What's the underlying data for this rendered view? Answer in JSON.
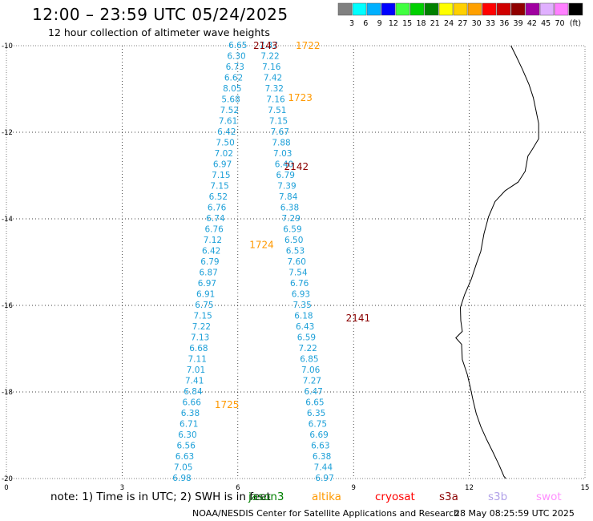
{
  "header": {
    "title": "12:00 – 23:59 UTC 05/24/2025",
    "subtitle": "12 hour collection of altimeter wave heights"
  },
  "legend": {
    "colors": [
      "#808080",
      "#00ffff",
      "#00b0ff",
      "#0000ff",
      "#40ff40",
      "#00d000",
      "#008000",
      "#ffff00",
      "#ffd000",
      "#ffa000",
      "#ff0000",
      "#d00000",
      "#900000",
      "#a000a0",
      "#e0b0ff",
      "#ff80ff",
      "#000000"
    ],
    "labels": [
      "3",
      "6",
      "9",
      "12",
      "15",
      "18",
      "21",
      "24",
      "27",
      "30",
      "33",
      "36",
      "39",
      "42",
      "45",
      "70",
      "(ft)"
    ]
  },
  "map": {
    "lon_range": [
      0,
      15
    ],
    "lat_range": [
      -20,
      -10
    ],
    "x_ticks": [
      "0",
      "3",
      "6",
      "9",
      "12",
      "15"
    ],
    "y_ticks": [
      "-10",
      "-12",
      "-14",
      "-16",
      "-18",
      "-20"
    ],
    "grid": "dotted",
    "coastline_color": "#000000",
    "label_color": "#1ea0d8"
  },
  "passes": [
    {
      "label": "2143",
      "color": "#8b0000"
    },
    {
      "label": "1722",
      "color": "#ff9900"
    },
    {
      "label": "1723",
      "color": "#ff9900"
    },
    {
      "label": "2142",
      "color": "#8b0000"
    },
    {
      "label": "1724",
      "color": "#ff9900"
    },
    {
      "label": "2141",
      "color": "#8b0000"
    },
    {
      "label": "1725",
      "color": "#ff9900"
    }
  ],
  "track_a": [
    "6.65",
    "6.30",
    "6.73",
    "6.62",
    "8.05",
    "5.68",
    "7.52",
    "7.61",
    "6.42",
    "7.50",
    "7.02",
    "6.97",
    "7.15",
    "7.15",
    "6.52",
    "6.76",
    "6.74",
    "6.76",
    "7.12",
    "6.42",
    "6.79",
    "6.87",
    "6.97",
    "6.91",
    "6.75",
    "7.15",
    "7.22",
    "7.13",
    "6.68",
    "7.11",
    "7.01",
    "7.41",
    "6.84",
    "6.66",
    "6.38",
    "6.71",
    "6.30",
    "6.56",
    "6.63",
    "7.05",
    "6.98"
  ],
  "track_b": [
    "7.37",
    "7.22",
    "7.16",
    "7.42",
    "7.32",
    "7.16",
    "7.51",
    "7.15",
    "7.67",
    "7.88",
    "7.03",
    "6.40",
    "6.79",
    "7.39",
    "7.84",
    "6.38",
    "7.29",
    "6.59",
    "6.50",
    "6.53",
    "7.60",
    "7.54",
    "6.76",
    "6.93",
    "7.35",
    "6.18",
    "6.43",
    "6.59",
    "7.22",
    "6.85",
    "7.06",
    "7.27",
    "6.47",
    "6.65",
    "6.35",
    "6.75",
    "6.69",
    "6.63",
    "6.38",
    "7.44",
    "6.97"
  ],
  "note": {
    "text": "note: 1) Time is in UTC; 2) SWH is in feet"
  },
  "satellites": [
    {
      "name": "jason3",
      "color": "#008000"
    },
    {
      "name": "altika",
      "color": "#ff9900"
    },
    {
      "name": "cryosat",
      "color": "#ff0000"
    },
    {
      "name": "s3a",
      "color": "#8b0000"
    },
    {
      "name": "s3b",
      "color": "#b0a0e8"
    },
    {
      "name": "swot",
      "color": "#ff90ff"
    }
  ],
  "footer": {
    "credit": "NOAA/NESDIS Center for Satellite Applications and Research",
    "timestamp": "28 May 08:25:59 UTC 2025"
  }
}
